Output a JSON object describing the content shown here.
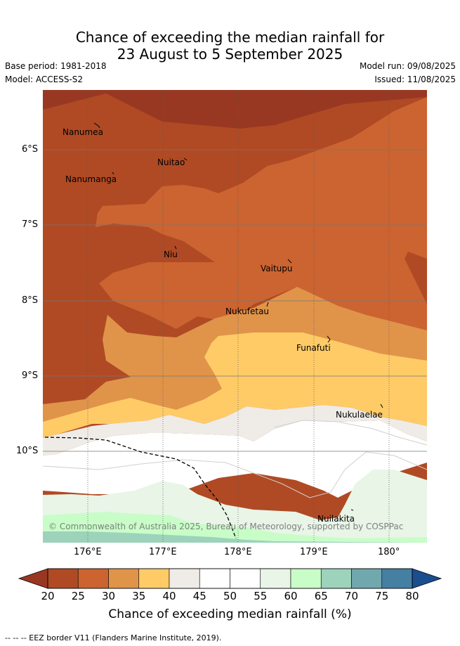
{
  "header": {
    "title_line1": "Chance of exceeding the median rainfall for",
    "title_line2": "23 August to 5 September 2025",
    "base_period": "Base period: 1981-2018",
    "model": "Model: ACCESS-S2",
    "model_run": "Model run: 09/08/2025",
    "issued": "Issued: 11/08/2025"
  },
  "map": {
    "islands": [
      {
        "name": "Nanumea"
      },
      {
        "name": "Nuitao"
      },
      {
        "name": "Nanumanga"
      },
      {
        "name": "Niu"
      },
      {
        "name": "Vaitupu"
      },
      {
        "name": "Nukufetau"
      },
      {
        "name": "Funafuti"
      },
      {
        "name": "Nukulaelae"
      },
      {
        "name": "Nuilakita"
      }
    ],
    "lat_labels": [
      "6°S",
      "7°S",
      "8°S",
      "9°S",
      "10°S"
    ],
    "lon_labels": [
      "176°E",
      "177°E",
      "178°E",
      "179°E",
      "180°"
    ],
    "copyright": "© Commonwealth of Australia 2025, Bureau of Meteorology, supported by COSPPac"
  },
  "colorbar": {
    "ticks": [
      "20",
      "25",
      "30",
      "35",
      "40",
      "45",
      "50",
      "55",
      "60",
      "65",
      "70",
      "75",
      "80"
    ],
    "colors": [
      "#b04a24",
      "#cb6431",
      "#e0944a",
      "#fecb67",
      "#efebe7",
      "#ffffff",
      "#ffffff",
      "#e8f5e7",
      "#c8fdc8",
      "#9dd2bb",
      "#70a8ad",
      "#457fa2"
    ],
    "under_color": "#993822",
    "over_color": "#1a4e8e",
    "title": "Chance of exceeding median rainfall (%)"
  },
  "footer": {
    "eez_note": "-- -- -- EEZ border V11 (Flanders Marine Institute, 2019)."
  }
}
